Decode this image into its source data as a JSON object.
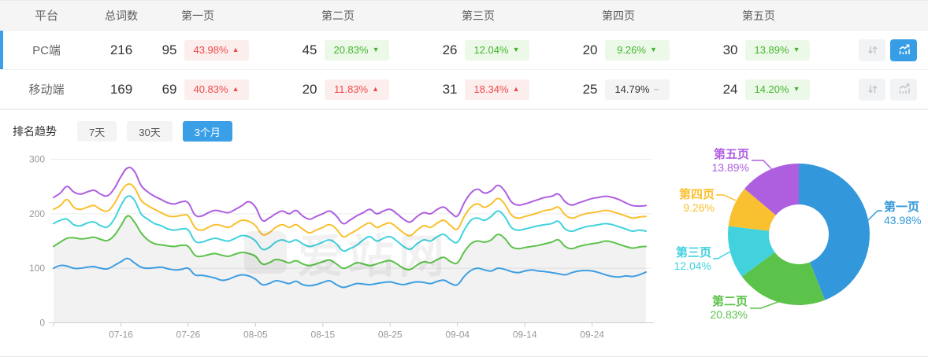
{
  "colors": {
    "accent_blue": "#3b9fe8",
    "red_text": "#f04a4a",
    "red_bg": "#fdeeee",
    "green_text": "#43b72f",
    "green_bg": "#ecf8e8",
    "gray_badge_bg": "#f4f4f5",
    "series": [
      "#3d9ee2",
      "#5cc34a",
      "#41d2de",
      "#f9c02f",
      "#ae5fe0"
    ]
  },
  "table": {
    "columns": [
      "平台",
      "总词数",
      "第一页",
      "第二页",
      "第三页",
      "第四页",
      "第五页"
    ],
    "rows": [
      {
        "platform": "PC端",
        "total": "216",
        "selected": true,
        "pages": [
          {
            "count": "95",
            "pct": "43.98%",
            "trend": "up",
            "tone": "red"
          },
          {
            "count": "45",
            "pct": "20.83%",
            "trend": "down",
            "tone": "green"
          },
          {
            "count": "26",
            "pct": "12.04%",
            "trend": "down",
            "tone": "green"
          },
          {
            "count": "20",
            "pct": "9.26%",
            "trend": "down",
            "tone": "green"
          },
          {
            "count": "30",
            "pct": "13.89%",
            "trend": "down",
            "tone": "green"
          }
        ],
        "sort_button_active": false,
        "chart_button_active": true
      },
      {
        "platform": "移动端",
        "total": "169",
        "selected": false,
        "pages": [
          {
            "count": "69",
            "pct": "40.83%",
            "trend": "up",
            "tone": "red"
          },
          {
            "count": "20",
            "pct": "11.83%",
            "trend": "up",
            "tone": "red"
          },
          {
            "count": "31",
            "pct": "18.34%",
            "trend": "up",
            "tone": "red"
          },
          {
            "count": "25",
            "pct": "14.79%",
            "trend": "flat",
            "tone": "gray"
          },
          {
            "count": "24",
            "pct": "14.20%",
            "trend": "down",
            "tone": "green"
          }
        ],
        "sort_button_active": false,
        "chart_button_active": false
      }
    ]
  },
  "trend": {
    "title": "排名趋势",
    "ranges": [
      {
        "label": "7天",
        "active": false
      },
      {
        "label": "30天",
        "active": false
      },
      {
        "label": "3个月",
        "active": true
      }
    ],
    "watermark": "爱站网"
  },
  "chart_data": [
    {
      "type": "line",
      "title": "排名趋势（3个月）",
      "stacked_cumulative": true,
      "grid": true,
      "ylim": [
        0,
        300
      ],
      "y_ticks": [
        0,
        100,
        200,
        300
      ],
      "x_tick_labels": [
        "07-16",
        "07-26",
        "08-05",
        "08-15",
        "08-25",
        "09-04",
        "09-14",
        "09-24"
      ],
      "x_tick_indices": [
        10,
        20,
        30,
        40,
        50,
        60,
        70,
        80
      ],
      "area_fill_under_series": "第二页",
      "series": [
        {
          "name": "第一页",
          "color": "#3d9ee2",
          "values": [
            100,
            105,
            104,
            100,
            100,
            102,
            103,
            100,
            99,
            105,
            112,
            118,
            110,
            102,
            100,
            101,
            102,
            99,
            97,
            98,
            100,
            88,
            87,
            85,
            82,
            78,
            80,
            85,
            88,
            86,
            80,
            70,
            72,
            77,
            75,
            72,
            76,
            70,
            68,
            70,
            74,
            77,
            70,
            65,
            68,
            72,
            71,
            70,
            72,
            74,
            75,
            72,
            70,
            73,
            75,
            74,
            72,
            76,
            78,
            72,
            70,
            85,
            96,
            100,
            97,
            95,
            100,
            98,
            94,
            92,
            95,
            97,
            95,
            94,
            92,
            90,
            88,
            92,
            95,
            96,
            95,
            92,
            88,
            85,
            84,
            86,
            85,
            88,
            93
          ]
        },
        {
          "name": "第二页",
          "color": "#5cc34a",
          "values": [
            140,
            148,
            155,
            156,
            154,
            155,
            157,
            153,
            151,
            160,
            178,
            196,
            185,
            165,
            152,
            145,
            143,
            141,
            140,
            142,
            140,
            124,
            122,
            125,
            127,
            124,
            122,
            126,
            129,
            127,
            122,
            108,
            110,
            116,
            114,
            110,
            114,
            108,
            105,
            108,
            112,
            115,
            108,
            100,
            104,
            110,
            108,
            105,
            108,
            112,
            114,
            108,
            100,
            98,
            106,
            112,
            110,
            116,
            120,
            112,
            110,
            130,
            145,
            150,
            148,
            152,
            162,
            155,
            140,
            136,
            138,
            140,
            142,
            145,
            148,
            152,
            140,
            136,
            140,
            143,
            145,
            147,
            150,
            148,
            144,
            140,
            137,
            139,
            140
          ]
        },
        {
          "name": "第三页",
          "color": "#41d2de",
          "values": [
            182,
            188,
            190,
            180,
            178,
            183,
            185,
            178,
            176,
            190,
            215,
            232,
            225,
            200,
            190,
            182,
            178,
            172,
            170,
            172,
            170,
            150,
            148,
            152,
            155,
            152,
            150,
            155,
            160,
            158,
            150,
            135,
            138,
            148,
            152,
            148,
            152,
            145,
            140,
            143,
            148,
            152,
            145,
            132,
            136,
            142,
            152,
            158,
            150,
            155,
            158,
            150,
            140,
            135,
            145,
            152,
            150,
            158,
            162,
            152,
            148,
            170,
            188,
            192,
            188,
            195,
            205,
            195,
            175,
            170,
            172,
            175,
            178,
            180,
            182,
            186,
            172,
            168,
            172,
            176,
            178,
            180,
            182,
            180,
            176,
            172,
            168,
            170,
            168
          ]
        },
        {
          "name": "第四页",
          "color": "#f9c02f",
          "values": [
            208,
            215,
            226,
            212,
            208,
            212,
            215,
            208,
            205,
            218,
            240,
            254,
            248,
            225,
            215,
            208,
            202,
            196,
            195,
            197,
            196,
            175,
            170,
            175,
            180,
            178,
            175,
            182,
            188,
            186,
            178,
            162,
            165,
            175,
            180,
            175,
            180,
            172,
            165,
            170,
            175,
            180,
            172,
            158,
            163,
            170,
            178,
            183,
            175,
            180,
            183,
            175,
            165,
            160,
            170,
            178,
            175,
            183,
            188,
            178,
            172,
            195,
            212,
            218,
            212,
            218,
            228,
            218,
            198,
            192,
            195,
            198,
            202,
            206,
            208,
            212,
            198,
            192,
            196,
            200,
            202,
            204,
            206,
            204,
            200,
            196,
            192,
            194,
            195
          ]
        },
        {
          "name": "第五页",
          "color": "#ae5fe0",
          "values": [
            230,
            238,
            250,
            240,
            236,
            240,
            243,
            236,
            233,
            246,
            268,
            284,
            278,
            252,
            240,
            232,
            226,
            220,
            218,
            222,
            220,
            198,
            196,
            202,
            206,
            204,
            202,
            208,
            215,
            222,
            212,
            188,
            192,
            200,
            205,
            200,
            206,
            196,
            190,
            195,
            200,
            205,
            196,
            182,
            188,
            196,
            202,
            208,
            200,
            205,
            208,
            200,
            190,
            185,
            195,
            202,
            200,
            208,
            212,
            202,
            196,
            220,
            238,
            245,
            238,
            242,
            252,
            242,
            222,
            216,
            218,
            222,
            226,
            230,
            232,
            236,
            222,
            216,
            220,
            224,
            228,
            230,
            232,
            230,
            226,
            220,
            215,
            214,
            215
          ]
        }
      ]
    },
    {
      "type": "pie",
      "donut": true,
      "slices": [
        {
          "label": "第一页",
          "pct": "43.98%",
          "value": 43.98,
          "color": "#3398db"
        },
        {
          "label": "第二页",
          "pct": "20.83%",
          "value": 20.83,
          "color": "#5cc34a"
        },
        {
          "label": "第三页",
          "pct": "12.04%",
          "value": 12.04,
          "color": "#41d2de"
        },
        {
          "label": "第四页",
          "pct": "9.26%",
          "value": 9.26,
          "color": "#f9c02f"
        },
        {
          "label": "第五页",
          "pct": "13.89%",
          "value": 13.89,
          "color": "#ae5fe0"
        }
      ]
    }
  ]
}
